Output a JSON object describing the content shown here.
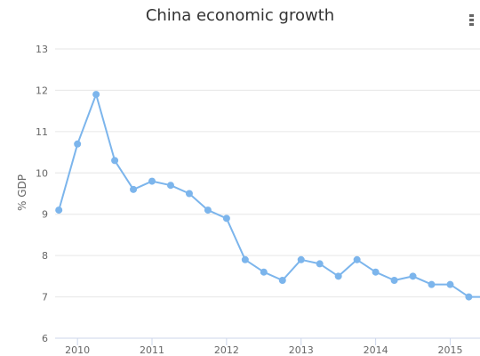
{
  "chart_data": {
    "type": "line",
    "title": "China economic growth",
    "ylabel": "% GDP",
    "xlabel": "",
    "x_ticks": [
      "2010",
      "2011",
      "2012",
      "2013",
      "2014",
      "2015"
    ],
    "y_ticks": [
      "6",
      "7",
      "8",
      "9",
      "10",
      "11",
      "12",
      "13"
    ],
    "ylim": [
      6,
      13
    ],
    "xlim": [
      2009.7,
      2015.4
    ],
    "grid": "horizontal",
    "legend": "none",
    "series": [
      {
        "color": "#7cb5ec",
        "points": [
          {
            "x": 2009.75,
            "y": 9.1
          },
          {
            "x": 2010.0,
            "y": 10.7
          },
          {
            "x": 2010.25,
            "y": 11.9
          },
          {
            "x": 2010.5,
            "y": 10.3
          },
          {
            "x": 2010.75,
            "y": 9.6
          },
          {
            "x": 2011.0,
            "y": 9.8
          },
          {
            "x": 2011.25,
            "y": 9.7
          },
          {
            "x": 2011.5,
            "y": 9.5
          },
          {
            "x": 2011.75,
            "y": 9.1
          },
          {
            "x": 2012.0,
            "y": 8.9
          },
          {
            "x": 2012.25,
            "y": 7.9
          },
          {
            "x": 2012.5,
            "y": 7.6
          },
          {
            "x": 2012.75,
            "y": 7.4
          },
          {
            "x": 2013.0,
            "y": 7.9
          },
          {
            "x": 2013.25,
            "y": 7.8
          },
          {
            "x": 2013.5,
            "y": 7.5
          },
          {
            "x": 2013.75,
            "y": 7.9
          },
          {
            "x": 2014.0,
            "y": 7.6
          },
          {
            "x": 2014.25,
            "y": 7.4
          },
          {
            "x": 2014.5,
            "y": 7.5
          },
          {
            "x": 2014.75,
            "y": 7.3
          },
          {
            "x": 2015.0,
            "y": 7.3
          },
          {
            "x": 2015.25,
            "y": 7.0
          },
          {
            "x": 2015.4,
            "y": 7.0
          }
        ]
      }
    ]
  }
}
